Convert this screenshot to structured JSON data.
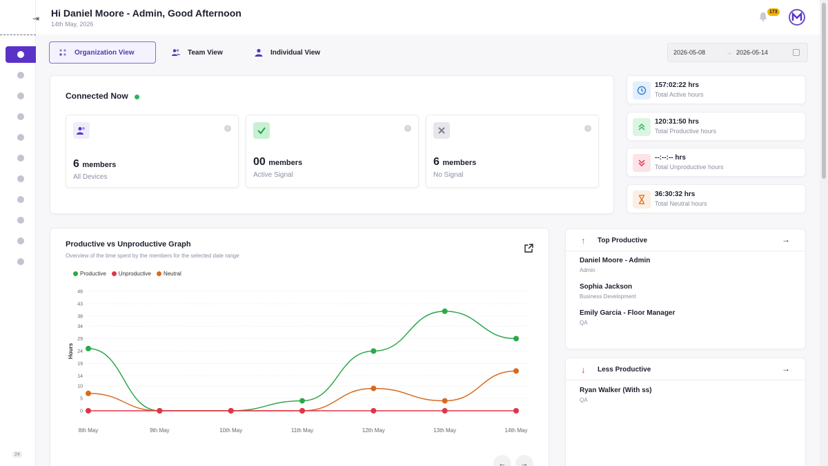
{
  "header": {
    "greeting": "Hi Daniel Moore - Admin, Good Afternoon",
    "date": "14th May, 2026",
    "notification_count": "173"
  },
  "sidebar": {
    "version": "24"
  },
  "tabs": [
    {
      "label": "Organization View",
      "active": true
    },
    {
      "label": "Team View",
      "active": false
    },
    {
      "label": "Individual View",
      "active": false
    }
  ],
  "date_range": {
    "from": "2026-05-08",
    "arrow": "→",
    "to": "2026-05-14"
  },
  "connected": {
    "title": "Connected Now",
    "cards": [
      {
        "count": "6",
        "unit": "members",
        "label": "All Devices"
      },
      {
        "count": "00",
        "unit": "members",
        "label": "Active Signal"
      },
      {
        "count": "6",
        "unit": "members",
        "label": "No Signal"
      }
    ]
  },
  "stats": [
    {
      "value": "157:02:22  hrs",
      "label": "Total Active hours",
      "color": "#2e7dd8"
    },
    {
      "value": "120:31:50  hrs",
      "label": "Total Productive hours",
      "color": "#2bb55a"
    },
    {
      "value": "--:--:--  hrs",
      "label": "Total Unproductive hours",
      "color": "#e0344a"
    },
    {
      "value": "36:30:32  hrs",
      "label": "Total Neutral hours",
      "color": "#d86a1e"
    }
  ],
  "graph": {
    "title": "Productive vs Unproductive Graph",
    "subtitle": "Overview of the time spent by the members for the selected date range",
    "prev": "←",
    "next": "→"
  },
  "chart_data": {
    "type": "line",
    "ylabel": "Hours",
    "ylim": [
      0,
      48
    ],
    "yticks": [
      0,
      5,
      10,
      14,
      19,
      24,
      29,
      34,
      38,
      43,
      48
    ],
    "categories": [
      "8th May",
      "9th May",
      "10th May",
      "11th May",
      "12th May",
      "13th May",
      "14th May"
    ],
    "series": [
      {
        "name": "Productive",
        "color": "#2ba84a",
        "values": [
          25,
          0,
          0,
          4,
          24,
          40,
          29
        ]
      },
      {
        "name": "Unproductive",
        "color": "#e0344a",
        "values": [
          0,
          0,
          0,
          0,
          0,
          0,
          0
        ]
      },
      {
        "name": "Neutral",
        "color": "#d86a1e",
        "values": [
          7,
          0,
          0,
          0,
          9,
          4,
          16
        ]
      }
    ]
  },
  "top_productive": {
    "title": "Top Productive",
    "items": [
      {
        "name": "Daniel Moore - Admin",
        "role": "Admin"
      },
      {
        "name": "Sophia Jackson",
        "role": "Business Development"
      },
      {
        "name": "Emily Garcia - Floor Manager",
        "role": "QA"
      }
    ]
  },
  "less_productive": {
    "title": "Less Productive",
    "items": [
      {
        "name": "Ryan Walker (With ss)",
        "role": "QA"
      }
    ]
  }
}
